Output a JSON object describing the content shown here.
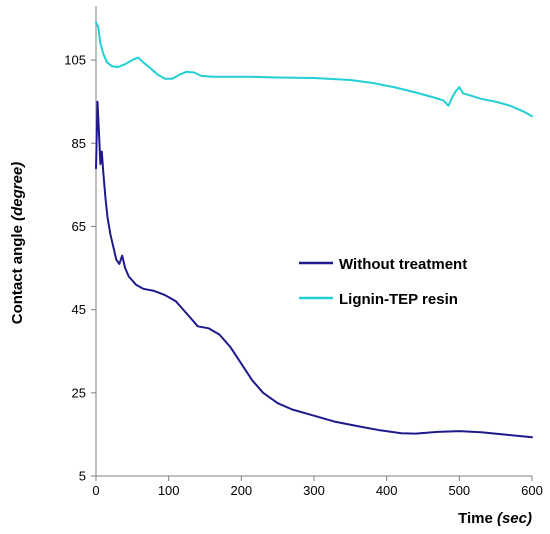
{
  "chart_data": {
    "type": "line",
    "title": "",
    "xlabel_main": "Time ",
    "xlabel_unit": "(sec)",
    "ylabel_main": "Contact angle ",
    "ylabel_unit": "(degree)",
    "xlim": [
      0,
      600
    ],
    "ylim": [
      5,
      118
    ],
    "xticks": [
      "0",
      "100",
      "200",
      "300",
      "400",
      "500",
      "600"
    ],
    "yticks": [
      "5",
      "25",
      "45",
      "65",
      "85",
      "105"
    ],
    "grid": false,
    "legend_position": "center-right",
    "series": [
      {
        "name": "Without treatment",
        "color": "#1f1a8c",
        "points": [
          [
            0,
            79
          ],
          [
            2,
            95
          ],
          [
            4,
            88
          ],
          [
            6,
            80
          ],
          [
            8,
            83
          ],
          [
            10,
            78
          ],
          [
            13,
            72
          ],
          [
            16,
            67
          ],
          [
            20,
            63
          ],
          [
            24,
            60
          ],
          [
            28,
            57
          ],
          [
            32,
            56
          ],
          [
            36,
            58
          ],
          [
            40,
            55
          ],
          [
            45,
            53
          ],
          [
            55,
            51
          ],
          [
            65,
            50
          ],
          [
            80,
            49.5
          ],
          [
            95,
            48.5
          ],
          [
            110,
            47
          ],
          [
            120,
            45
          ],
          [
            130,
            43
          ],
          [
            140,
            41
          ],
          [
            155,
            40.5
          ],
          [
            170,
            39
          ],
          [
            185,
            36
          ],
          [
            200,
            32
          ],
          [
            215,
            28
          ],
          [
            230,
            25
          ],
          [
            250,
            22.5
          ],
          [
            270,
            21
          ],
          [
            300,
            19.5
          ],
          [
            330,
            18
          ],
          [
            360,
            17
          ],
          [
            390,
            16
          ],
          [
            420,
            15.3
          ],
          [
            440,
            15.2
          ],
          [
            470,
            15.6
          ],
          [
            500,
            15.8
          ],
          [
            530,
            15.5
          ],
          [
            560,
            15
          ],
          [
            600,
            14.3
          ]
        ]
      },
      {
        "name": "Lignin-TEP resin",
        "color": "#22cfd3",
        "points": [
          [
            0,
            114
          ],
          [
            3,
            113
          ],
          [
            6,
            109
          ],
          [
            10,
            106.5
          ],
          [
            15,
            104.5
          ],
          [
            22,
            103.5
          ],
          [
            30,
            103.3
          ],
          [
            40,
            104
          ],
          [
            50,
            105
          ],
          [
            58,
            105.6
          ],
          [
            65,
            104.5
          ],
          [
            75,
            103
          ],
          [
            85,
            101.5
          ],
          [
            95,
            100.5
          ],
          [
            105,
            100.5
          ],
          [
            115,
            101.5
          ],
          [
            125,
            102.2
          ],
          [
            135,
            102
          ],
          [
            145,
            101.2
          ],
          [
            160,
            101
          ],
          [
            180,
            101
          ],
          [
            210,
            101
          ],
          [
            250,
            100.8
          ],
          [
            300,
            100.7
          ],
          [
            350,
            100.2
          ],
          [
            380,
            99.5
          ],
          [
            410,
            98.5
          ],
          [
            440,
            97.2
          ],
          [
            465,
            96
          ],
          [
            478,
            95.3
          ],
          [
            485,
            94
          ],
          [
            490,
            96
          ],
          [
            495,
            97.5
          ],
          [
            500,
            98.5
          ],
          [
            505,
            97
          ],
          [
            515,
            96.5
          ],
          [
            530,
            95.7
          ],
          [
            550,
            95
          ],
          [
            570,
            94
          ],
          [
            590,
            92.5
          ],
          [
            600,
            91.5
          ]
        ]
      }
    ]
  }
}
